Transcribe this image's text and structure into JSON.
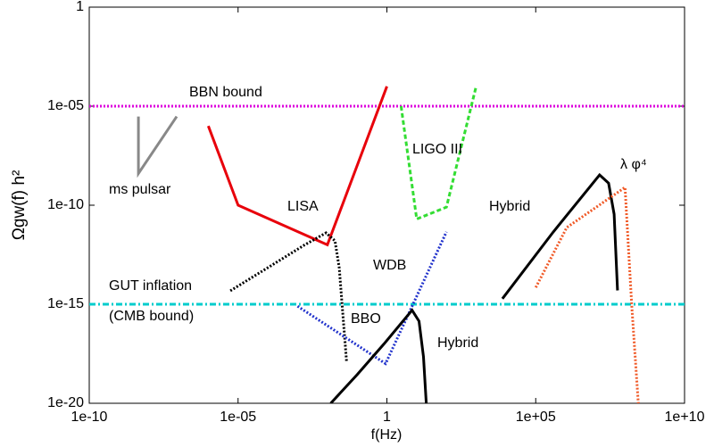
{
  "chart_data": {
    "type": "line",
    "xlabel": "f(Hz)",
    "ylabel": "Ωgw(f) h²",
    "xscale": "log",
    "yscale": "log",
    "xlim": [
      1e-10,
      10000000000.0
    ],
    "ylim": [
      1e-20,
      1
    ],
    "xticks": [
      {
        "value": 1e-10,
        "label": "1e-10"
      },
      {
        "value": 1e-05,
        "label": "1e-05"
      },
      1,
      {
        "value": 100000.0,
        "label": "1e+05"
      },
      {
        "value": 10000000000.0,
        "label": "1e+10"
      }
    ],
    "yticks": [
      {
        "value": 1e-20,
        "label": "1e-20"
      },
      {
        "value": 1e-15,
        "label": "1e-15"
      },
      {
        "value": 1e-10,
        "label": "1e-10"
      },
      {
        "value": 1e-05,
        "label": "1e-05"
      },
      1
    ],
    "annotations": [
      "(CMB bound)"
    ],
    "series": [
      {
        "name": "BBN bound",
        "color": "#dd00dd",
        "style": "dotted",
        "x": [
          1e-10,
          10000000000.0
        ],
        "values": [
          1e-05,
          1e-05
        ]
      },
      {
        "name": "GUT inflation",
        "color": "#00cccc",
        "style": "dashdot",
        "x": [
          1e-10,
          10000000000.0
        ],
        "values": [
          1e-15,
          1e-15
        ]
      },
      {
        "name": "ms pulsar",
        "color": "#888888",
        "style": "solid",
        "x": [
          4.5e-09,
          4.5e-09,
          8.7e-08
        ],
        "values": [
          3e-06,
          4e-09,
          3e-06
        ]
      },
      {
        "name": "LISA",
        "color": "#e8000b",
        "style": "solid",
        "x": [
          1e-06,
          1e-05,
          0.01,
          1
        ],
        "values": [
          1e-06,
          1e-10,
          1e-12,
          0.0001
        ]
      },
      {
        "name": "LIGO III",
        "color": "#33dd33",
        "style": "dashed",
        "x": [
          3,
          10,
          100,
          1000
        ],
        "values": [
          1e-05,
          2e-11,
          8e-11,
          0.0001
        ]
      },
      {
        "name": "Hybrid",
        "color": "#000000",
        "style": "solid",
        "x": [
          7600,
          390000,
          14000000,
          28000000,
          43000000,
          56000000
        ],
        "values": [
          1.9e-15,
          4.5e-12,
          3.4e-09,
          1.3e-09,
          3.5e-11,
          5e-15
        ]
      },
      {
        "name": "λ φ⁴",
        "color": "#f05a28",
        "style": "dotted",
        "x": [
          100000,
          1100000,
          100000000,
          170000000,
          280000000
        ],
        "values": [
          7e-15,
          7.5e-12,
          8e-10,
          6.6e-16,
          1e-20
        ]
      },
      {
        "name": "WDB",
        "color": "#000000",
        "style": "dotted",
        "x": [
          5.5e-06,
          0.0001,
          0.0016,
          0.009,
          0.018,
          0.025,
          0.031,
          0.044
        ],
        "values": [
          4.8e-15,
          7e-14,
          9.3e-13,
          4e-12,
          1.6e-12,
          7e-14,
          1.1e-15,
          1.3e-18
        ]
      },
      {
        "name": "BBO",
        "color": "#2233cc",
        "style": "dotted",
        "x": [
          0.001,
          0.9,
          100
        ],
        "values": [
          8e-16,
          1e-18,
          4.5e-12
        ]
      },
      {
        "name": "Hybrid",
        "color": "#000000",
        "style": "solid",
        "x": [
          0.013,
          0.1,
          0.8,
          7,
          12,
          17,
          21
        ],
        "values": [
          1e-20,
          2.8e-19,
          1e-17,
          5e-16,
          1.4e-16,
          2.2e-18,
          1e-20
        ]
      }
    ]
  }
}
